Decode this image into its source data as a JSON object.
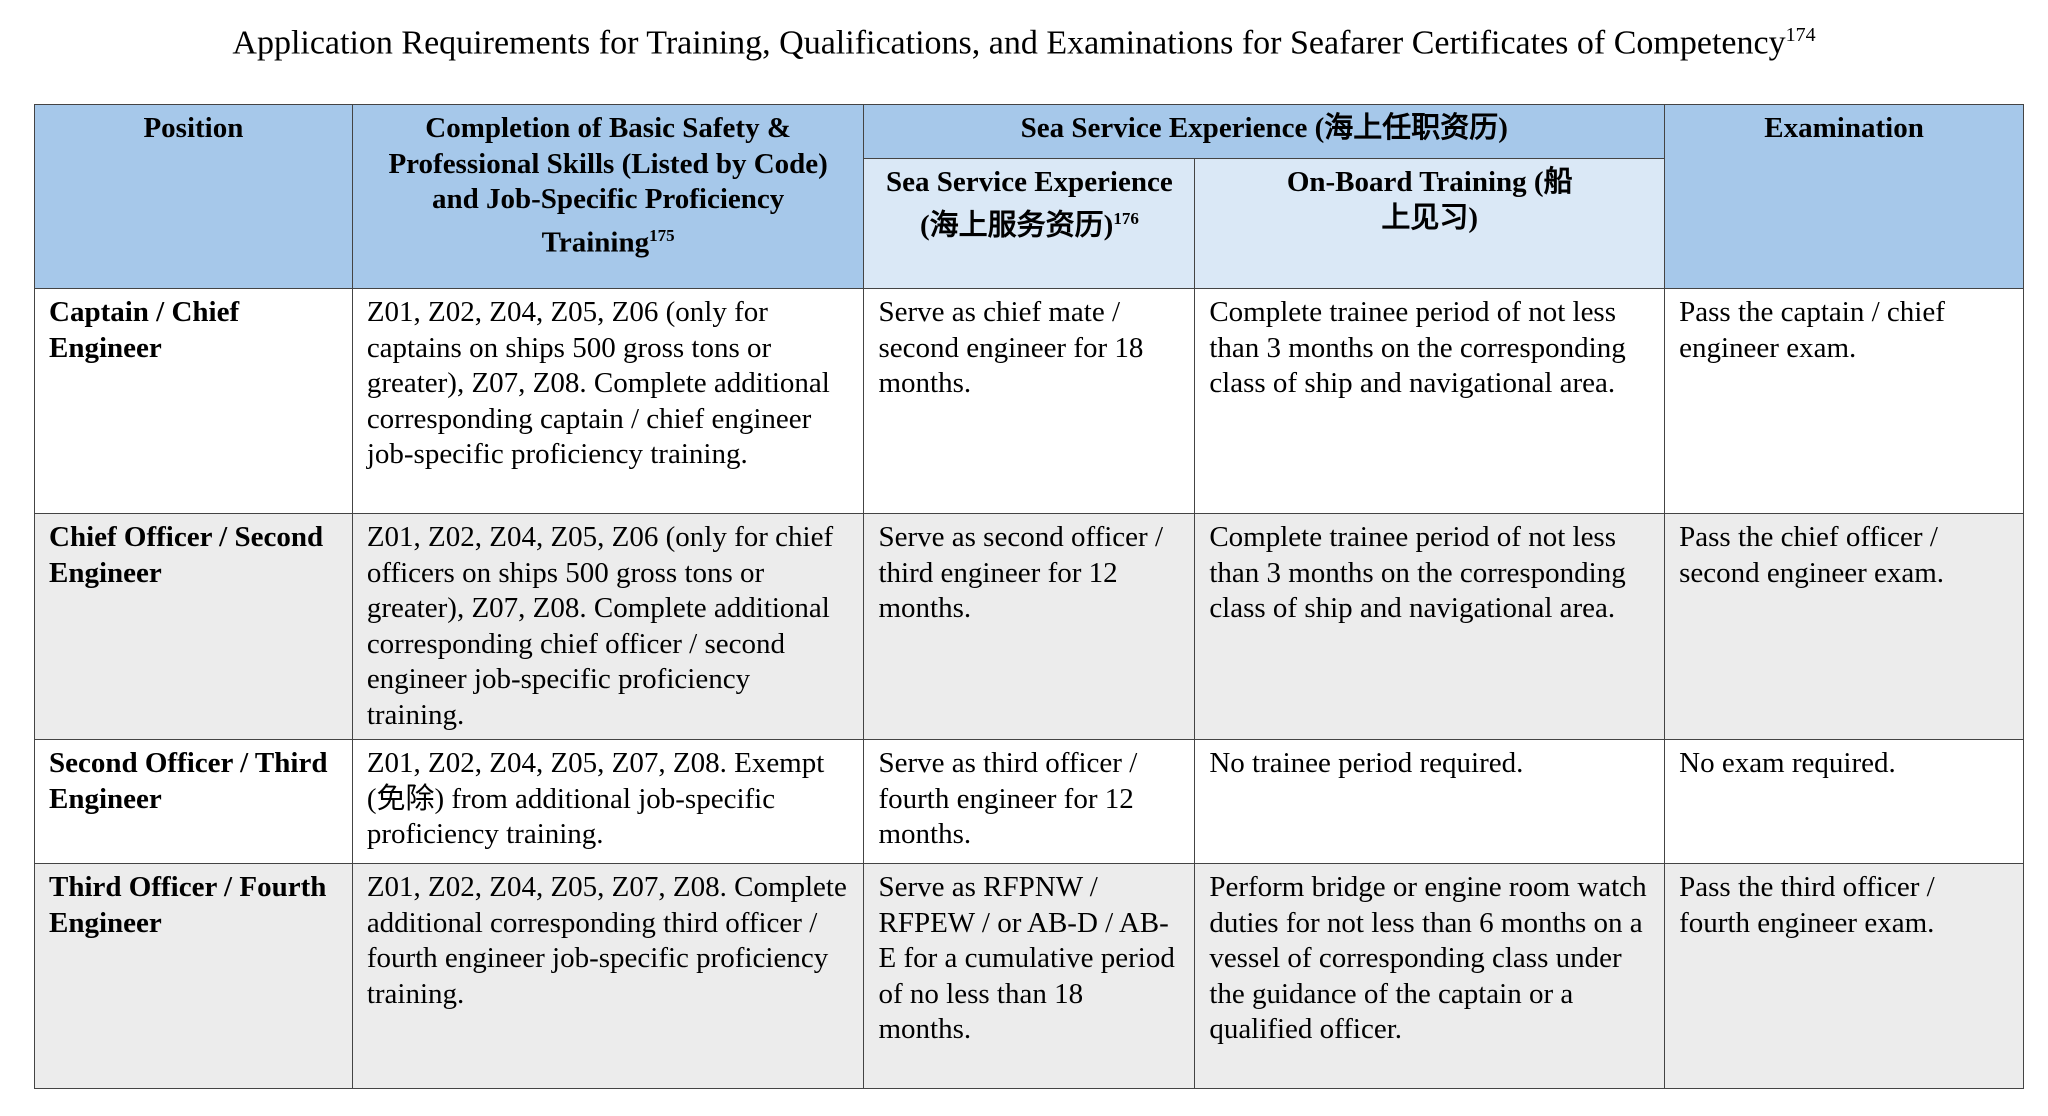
{
  "title": "Application Requirements for Training, Qualifications, and Examinations for Seafarer Certificates of Competency",
  "title_footnote": "174",
  "headers": {
    "position": "Position",
    "completion": "Completion of Basic Safety & Professional Skills (Listed by Code) and Job-Specific Proficiency Training",
    "completion_footnote": "175",
    "sea_service_group": "Sea Service Experience (海上任职资历)",
    "sea_service": "Sea Service Experience (海上服务资历)",
    "sea_service_footnote": "176",
    "onboard": "On-Board Training (船上见习)",
    "examination": "Examination"
  },
  "rows": [
    {
      "position": "Captain / Chief Engineer",
      "completion": "Z01, Z02, Z04, Z05, Z06 (only for captains on ships 500 gross tons or greater), Z07, Z08. Complete additional corresponding captain / chief engineer job-specific proficiency training.",
      "sea_service": "Serve as chief mate / second engineer for 18 months.",
      "onboard": "Complete trainee period of not less than 3 months on the corresponding class of ship and navigational area.",
      "examination": "Pass the captain / chief engineer exam."
    },
    {
      "position": "Chief Officer / Second Engineer",
      "completion": "Z01, Z02, Z04, Z05, Z06 (only for chief officers on ships 500 gross tons or greater), Z07, Z08. Complete additional corresponding chief officer / second engineer job-specific proficiency training.",
      "sea_service": "Serve as second officer / third engineer for 12 months.",
      "onboard": "Complete trainee period of not less than 3 months on the corresponding class of ship and navigational area.",
      "examination": "Pass the chief officer / second engineer exam."
    },
    {
      "position": "Second Officer / Third Engineer",
      "completion": "Z01, Z02, Z04, Z05, Z07, Z08. Exempt (免除) from additional job-specific proficiency training.",
      "sea_service": "Serve as third officer / fourth engineer for 12 months.",
      "onboard": "No trainee period required.",
      "examination": "No exam required."
    },
    {
      "position": "Third Officer / Fourth Engineer",
      "completion": "Z01, Z02, Z04, Z05, Z07, Z08. Complete additional corresponding third officer / fourth engineer job-specific proficiency training.",
      "sea_service": "Serve as RFPNW / RFPEW / or AB-D / AB-E for a cumulative period of no less than 18 months.",
      "onboard": "Perform bridge or engine room watch duties for not less than 6 months on a vessel of corresponding class under the guidance of the captain or a qualified officer.",
      "examination": "Pass the third officer / fourth engineer exam."
    }
  ]
}
